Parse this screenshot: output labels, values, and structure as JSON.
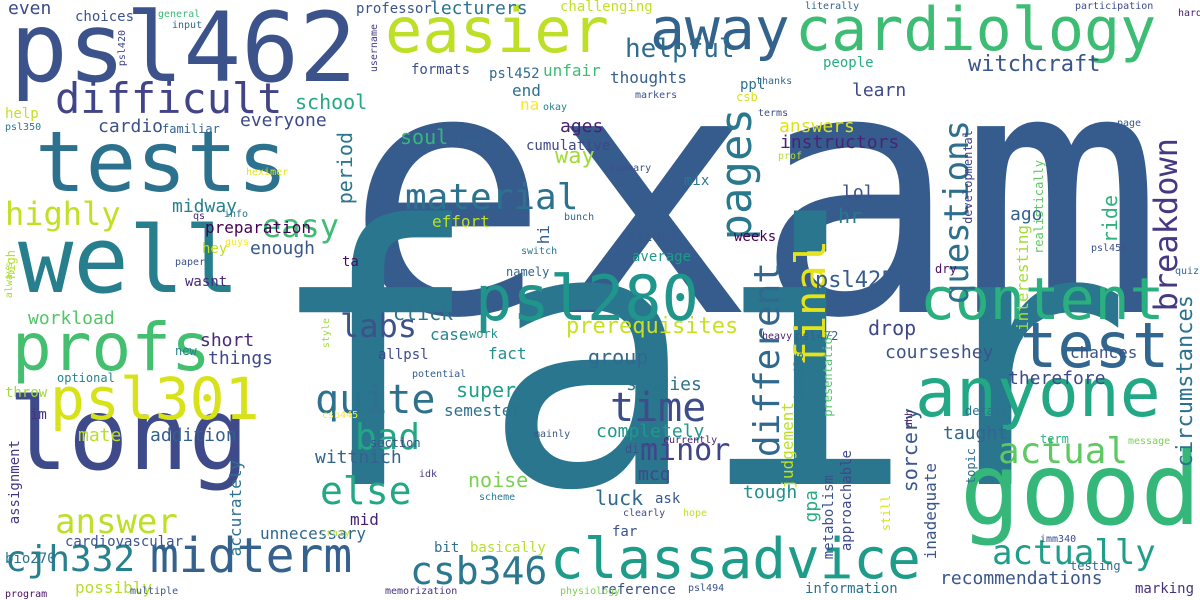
{
  "words": [
    {
      "text": "exam",
      "color": "#365c8d"
    },
    {
      "text": "fair",
      "color": "#2a768e"
    },
    {
      "text": "good",
      "color": "#35b779"
    },
    {
      "text": "long",
      "color": "#3e4a89"
    },
    {
      "text": "well",
      "color": "#277f8e"
    },
    {
      "text": "tests",
      "color": "#2c728e"
    },
    {
      "text": "psl462",
      "color": "#3b528b"
    },
    {
      "text": "easier",
      "color": "#bddf26"
    },
    {
      "text": "cardiology",
      "color": "#3dbc74"
    },
    {
      "text": "away",
      "color": "#33638d"
    },
    {
      "text": "profs",
      "color": "#44bf70"
    },
    {
      "text": "anyone",
      "color": "#22a884"
    },
    {
      "text": "content",
      "color": "#2ab07f"
    },
    {
      "text": "test",
      "color": "#31668e"
    },
    {
      "text": "psl280",
      "color": "#1f958b"
    },
    {
      "text": "psl301",
      "color": "#d8e219"
    },
    {
      "text": "midterm",
      "color": "#34618d"
    },
    {
      "text": "classadvice",
      "color": "#1e9c89"
    },
    {
      "text": "difficult",
      "color": "#414487"
    },
    {
      "text": "final",
      "color": "#e5e419"
    },
    {
      "text": "material",
      "color": "#2c728e"
    },
    {
      "text": "quite",
      "color": "#2d718e"
    },
    {
      "text": "time",
      "color": "#3e4c8a"
    },
    {
      "text": "csb346",
      "color": "#2a778e"
    },
    {
      "text": "cjh332",
      "color": "#27808e"
    },
    {
      "text": "actually",
      "color": "#1f9e89"
    },
    {
      "text": "answer",
      "color": "#bddf26"
    },
    {
      "text": "actual",
      "color": "#5ec962"
    },
    {
      "text": "else",
      "color": "#22a884"
    },
    {
      "text": "bad",
      "color": "#22a884"
    },
    {
      "text": "labs",
      "color": "#3b528b"
    },
    {
      "text": "easy",
      "color": "#3dbc74"
    },
    {
      "text": "highly",
      "color": "#c2df23"
    },
    {
      "text": "helpful",
      "color": "#2f6c8e"
    },
    {
      "text": "pages",
      "color": "#2a788e"
    },
    {
      "text": "different",
      "color": "#31688e"
    },
    {
      "text": "questions",
      "color": "#2e6f8e"
    },
    {
      "text": "breakdown",
      "color": "#443983"
    },
    {
      "text": "minor",
      "color": "#414487"
    },
    {
      "text": "circumstances",
      "color": "#2c728e"
    },
    {
      "text": "recommendations",
      "color": "#39558c"
    },
    {
      "text": "prerequisites",
      "color": "#c8e020"
    },
    {
      "text": "psl425",
      "color": "#365d8d"
    },
    {
      "text": "witchcraft",
      "color": "#3a548c"
    },
    {
      "text": "cardio",
      "color": "#3b518b"
    },
    {
      "text": "school",
      "color": "#23a983"
    },
    {
      "text": "everyone",
      "color": "#3e4a89"
    },
    {
      "text": "midway",
      "color": "#26818e"
    },
    {
      "text": "preparation",
      "color": "#440154"
    },
    {
      "text": "enough",
      "color": "#38588c"
    },
    {
      "text": "workload",
      "color": "#52c569"
    },
    {
      "text": "addition",
      "color": "#355f8d"
    },
    {
      "text": "mate",
      "color": "#bade28"
    },
    {
      "text": "wittnich",
      "color": "#33638d"
    },
    {
      "text": "noise",
      "color": "#7ad151"
    },
    {
      "text": "mid",
      "color": "#481f70"
    },
    {
      "text": "luck",
      "color": "#306a8e"
    },
    {
      "text": "mcq",
      "color": "#3f4889"
    },
    {
      "text": "completely",
      "color": "#1f998a"
    },
    {
      "text": "semester",
      "color": "#2d708e"
    },
    {
      "text": "super",
      "color": "#1fa088"
    },
    {
      "text": "studies",
      "color": "#2b748e"
    },
    {
      "text": "group",
      "color": "#31688e"
    },
    {
      "text": "fact",
      "color": "#21918c"
    },
    {
      "text": "case",
      "color": "#25848e"
    },
    {
      "text": "click",
      "color": "#2c738e"
    },
    {
      "text": "drop",
      "color": "#3f4788"
    },
    {
      "text": "courseshey",
      "color": "#3b528b"
    },
    {
      "text": "things",
      "color": "#3f4889"
    },
    {
      "text": "short",
      "color": "#482878"
    },
    {
      "text": "period",
      "color": "#2a778e"
    },
    {
      "text": "soul",
      "color": "#35b779"
    },
    {
      "text": "way",
      "color": "#a2da37"
    },
    {
      "text": "ages",
      "color": "#482173"
    },
    {
      "text": "answers",
      "color": "#dde318"
    },
    {
      "text": "instructors",
      "color": "#482475"
    },
    {
      "text": "lol",
      "color": "#3b528b"
    },
    {
      "text": "hr",
      "color": "#2a768e"
    },
    {
      "text": "ago",
      "color": "#33638d"
    },
    {
      "text": "interesting",
      "color": "#a5db36"
    },
    {
      "text": "ride",
      "color": "#2db27d"
    },
    {
      "text": "therefore",
      "color": "#3f4889"
    },
    {
      "text": "taught",
      "color": "#31678e"
    },
    {
      "text": "sorcery",
      "color": "#38598c"
    },
    {
      "text": "tough",
      "color": "#21908d"
    },
    {
      "text": "gpa",
      "color": "#27ad81"
    },
    {
      "text": "judgement",
      "color": "#bddf26"
    },
    {
      "text": "chances",
      "color": "#3b528b"
    },
    {
      "text": "unnecessary",
      "color": "#31678e"
    },
    {
      "text": "accurately",
      "color": "#2c728e"
    },
    {
      "text": "possibly",
      "color": "#b5de2b"
    },
    {
      "text": "cardiovascular",
      "color": "#3a548c"
    },
    {
      "text": "basically",
      "color": "#b8de29"
    },
    {
      "text": "bit",
      "color": "#2e6e8e"
    },
    {
      "text": "reference",
      "color": "#3c4f8a"
    },
    {
      "text": "information",
      "color": "#2c728e"
    },
    {
      "text": "marking",
      "color": "#46327e"
    },
    {
      "text": "testing",
      "color": "#31688e"
    },
    {
      "text": "psl494",
      "color": "#3b528b"
    },
    {
      "text": "memorization",
      "color": "#46307e"
    },
    {
      "text": "physiology",
      "color": "#7ad151"
    },
    {
      "text": "multiple",
      "color": "#38588c"
    },
    {
      "text": "bio270",
      "color": "#2d708e"
    },
    {
      "text": "program",
      "color": "#471063"
    },
    {
      "text": "assignment",
      "color": "#453882"
    },
    {
      "text": "im",
      "color": "#46337f"
    },
    {
      "text": "throw",
      "color": "#9fda3a"
    },
    {
      "text": "optional",
      "color": "#26828e"
    },
    {
      "text": "csb445",
      "color": "#fde725"
    },
    {
      "text": "potential",
      "color": "#365c8d"
    },
    {
      "text": "allpsl",
      "color": "#3e4a89"
    },
    {
      "text": "new",
      "color": "#277e8e"
    },
    {
      "text": "always",
      "color": "#a8db34"
    },
    {
      "text": "high",
      "color": "#b5de2b"
    },
    {
      "text": "style",
      "color": "#9fda3a"
    },
    {
      "text": "wasnt",
      "color": "#482878"
    },
    {
      "text": "ta",
      "color": "#471063"
    },
    {
      "text": "hey",
      "color": "#c2df23"
    },
    {
      "text": "guys",
      "color": "#fde725"
    },
    {
      "text": "paper",
      "color": "#3b528b"
    },
    {
      "text": "qs",
      "color": "#482475"
    },
    {
      "text": "info",
      "color": "#2d708e"
    },
    {
      "text": "hi",
      "color": "#34618d"
    },
    {
      "text": "switch",
      "color": "#2a788e"
    },
    {
      "text": "bunch",
      "color": "#31668e"
    },
    {
      "text": "effort",
      "color": "#bddf26"
    },
    {
      "text": "slides",
      "color": "#38588c"
    },
    {
      "text": "average",
      "color": "#1f9a8a"
    },
    {
      "text": "weeks",
      "color": "#440154"
    },
    {
      "text": "namely",
      "color": "#33638d"
    },
    {
      "text": "work",
      "color": "#21918c"
    },
    {
      "text": "mix",
      "color": "#2a788e"
    },
    {
      "text": "summary",
      "color": "#3b528b"
    },
    {
      "text": "cumulative",
      "color": "#3f4889"
    },
    {
      "text": "okay",
      "color": "#26828e"
    },
    {
      "text": "na",
      "color": "#fde725"
    },
    {
      "text": "end",
      "color": "#2d708e"
    },
    {
      "text": "level",
      "color": "#33638d"
    },
    {
      "text": "ppl",
      "color": "#2c728e"
    },
    {
      "text": "csb",
      "color": "#d8e219"
    },
    {
      "text": "terms",
      "color": "#3e4c8a"
    },
    {
      "text": "thanks",
      "color": "#31688e"
    },
    {
      "text": "prof",
      "color": "#b5de2b"
    },
    {
      "text": "markers",
      "color": "#3b528b"
    },
    {
      "text": "thoughts",
      "color": "#355f8d"
    },
    {
      "text": "people",
      "color": "#27ad81"
    },
    {
      "text": "learn",
      "color": "#3e4989"
    },
    {
      "text": "formats",
      "color": "#3b528b"
    },
    {
      "text": "psl452",
      "color": "#2f6b8e"
    },
    {
      "text": "unfair",
      "color": "#3dbc74"
    },
    {
      "text": "lecturers",
      "color": "#2c728e"
    },
    {
      "text": "challenging",
      "color": "#c2df23"
    },
    {
      "text": "professor",
      "color": "#3b528b"
    },
    {
      "text": "username",
      "color": "#443983"
    },
    {
      "text": "even",
      "color": "#3e4989"
    },
    {
      "text": "choices",
      "color": "#3a548c"
    },
    {
      "text": "general",
      "color": "#38b977"
    },
    {
      "text": "input",
      "color": "#31678e"
    },
    {
      "text": "psl420",
      "color": "#414487"
    },
    {
      "text": "help",
      "color": "#c2df23"
    },
    {
      "text": "psl350",
      "color": "#2a788e"
    },
    {
      "text": "familiar",
      "color": "#33638d"
    },
    {
      "text": "heximer",
      "color": "#e5e419"
    },
    {
      "text": "literally",
      "color": "#33638d"
    },
    {
      "text": "participation",
      "color": "#3e4c8a"
    },
    {
      "text": "hard",
      "color": "#481f70"
    },
    {
      "text": "quiz",
      "color": "#31688e"
    },
    {
      "text": "page",
      "color": "#39568c"
    },
    {
      "text": "developmental",
      "color": "#414487"
    },
    {
      "text": "realistically",
      "color": "#5ec962"
    },
    {
      "text": "psl450",
      "color": "#3b528b"
    },
    {
      "text": "psl472",
      "color": "#33638d"
    },
    {
      "text": "dry",
      "color": "#471063"
    },
    {
      "text": "heavy",
      "color": "#481f70"
    },
    {
      "text": "details",
      "color": "#2c728e"
    },
    {
      "text": "presentation",
      "color": "#52c569"
    },
    {
      "text": "approachable",
      "color": "#3e4989"
    },
    {
      "text": "metabolism",
      "color": "#3b528b"
    },
    {
      "text": "inadequate",
      "color": "#3a548c"
    },
    {
      "text": "detail",
      "color": "#2c728e"
    },
    {
      "text": "topic",
      "color": "#2e6f8e"
    },
    {
      "text": "still",
      "color": "#d8e219"
    },
    {
      "text": "ahh",
      "color": "#481f70"
    },
    {
      "text": "term",
      "color": "#2db27d"
    },
    {
      "text": "message",
      "color": "#7ad151"
    },
    {
      "text": "imm340",
      "color": "#3e4c8a"
    },
    {
      "text": "section",
      "color": "#3b528b"
    },
    {
      "text": "idk",
      "color": "#443983"
    },
    {
      "text": "mainly",
      "color": "#38588c"
    },
    {
      "text": "scheme",
      "color": "#2a788e"
    },
    {
      "text": "crazy",
      "color": "#b5de2b"
    },
    {
      "text": "diff",
      "color": "#3b528b"
    },
    {
      "text": "ask",
      "color": "#39568c"
    },
    {
      "text": "hope",
      "color": "#bddf26"
    },
    {
      "text": "clearly",
      "color": "#3e4c8a"
    },
    {
      "text": "far",
      "color": "#3b528b"
    },
    {
      "text": "currently",
      "color": "#481f70"
    }
  ]
}
